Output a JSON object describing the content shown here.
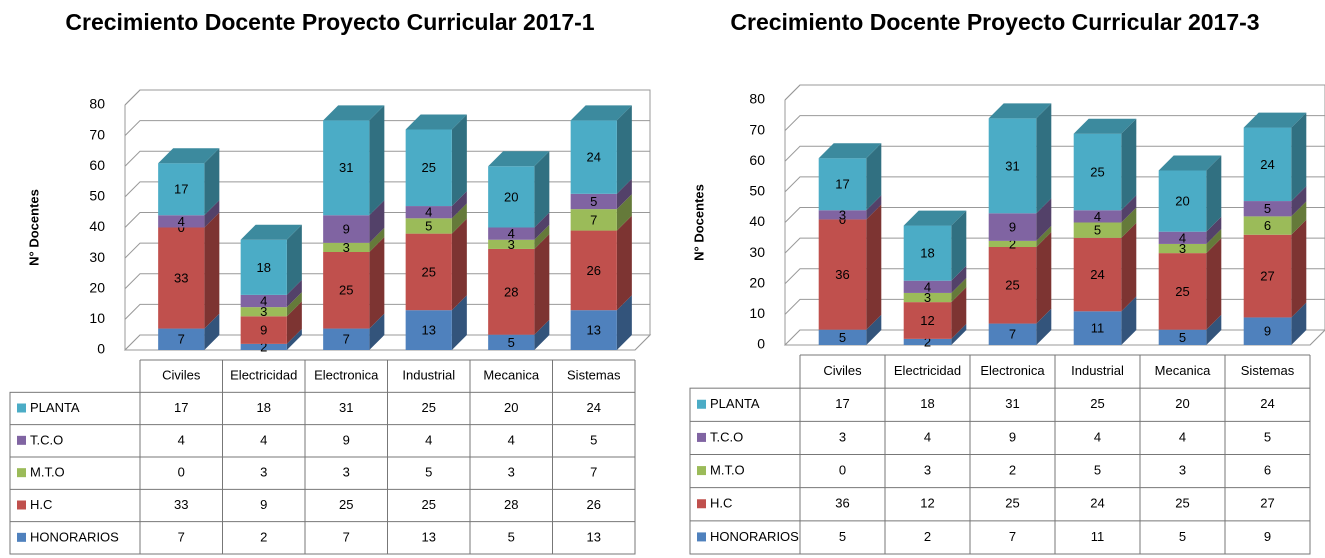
{
  "chart_data": [
    {
      "type": "bar3d_stacked",
      "title": "Crecimiento Docente Proyecto Curricular 2017-1",
      "y_label": "N° Docentes",
      "categories": [
        "Civiles",
        "Electricidad",
        "Electronica",
        "Industrial",
        "Mecanica",
        "Sistemas"
      ],
      "ylim": [
        0,
        80
      ],
      "yticks": [
        0,
        10,
        20,
        30,
        40,
        50,
        60,
        70,
        80
      ],
      "grid": true,
      "series": [
        {
          "name": "HONORARIOS",
          "color": "#4f81bd",
          "values": [
            7,
            2,
            7,
            13,
            5,
            13
          ]
        },
        {
          "name": "H.C",
          "color": "#c0504d",
          "values": [
            33,
            9,
            25,
            25,
            28,
            26
          ]
        },
        {
          "name": "M.T.O",
          "color": "#9bbb59",
          "values": [
            0,
            3,
            3,
            5,
            3,
            7
          ]
        },
        {
          "name": "T.C.O",
          "color": "#8064a2",
          "values": [
            4,
            4,
            9,
            4,
            4,
            5
          ]
        },
        {
          "name": "PLANTA",
          "color": "#4bacc6",
          "values": [
            17,
            18,
            31,
            25,
            20,
            24
          ]
        }
      ]
    },
    {
      "type": "bar3d_stacked",
      "title": "Crecimiento Docente Proyecto Curricular 2017-3",
      "y_label": "N° Docentes",
      "categories": [
        "Civiles",
        "Electricidad",
        "Electronica",
        "Industrial",
        "Mecanica",
        "Sistemas"
      ],
      "ylim": [
        0,
        80
      ],
      "yticks": [
        0,
        10,
        20,
        30,
        40,
        50,
        60,
        70,
        80
      ],
      "grid": true,
      "series": [
        {
          "name": "HONORARIOS",
          "color": "#4f81bd",
          "values": [
            5,
            2,
            7,
            11,
            5,
            9
          ]
        },
        {
          "name": "H.C",
          "color": "#c0504d",
          "values": [
            36,
            12,
            25,
            24,
            25,
            27
          ]
        },
        {
          "name": "M.T.O",
          "color": "#9bbb59",
          "values": [
            0,
            3,
            2,
            5,
            3,
            6
          ]
        },
        {
          "name": "T.C.O",
          "color": "#8064a2",
          "values": [
            3,
            4,
            9,
            4,
            4,
            5
          ]
        },
        {
          "name": "PLANTA",
          "color": "#4bacc6",
          "values": [
            17,
            18,
            31,
            25,
            20,
            24
          ]
        }
      ]
    }
  ]
}
